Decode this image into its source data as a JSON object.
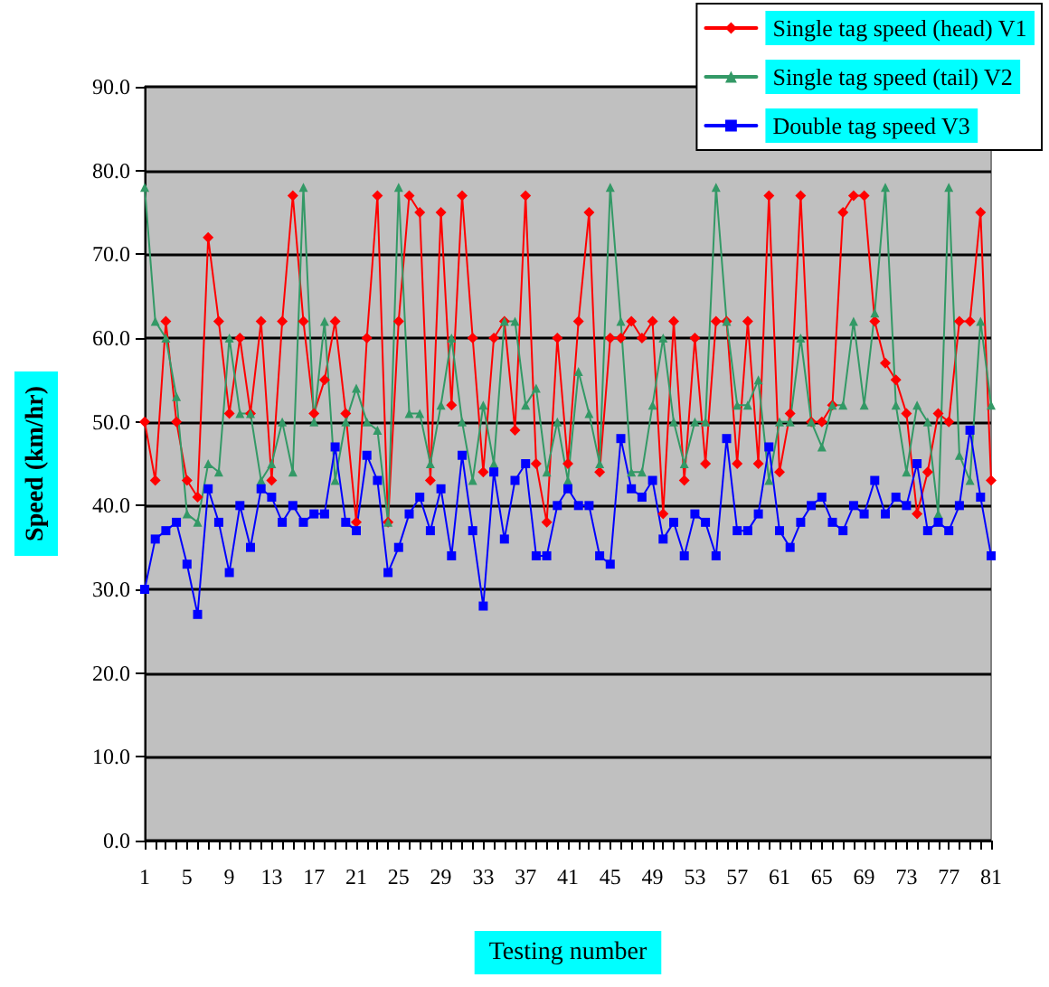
{
  "chart_data": {
    "type": "line",
    "xlabel": "Testing number",
    "ylabel": "Speed (km/hr)",
    "categories": [
      "1",
      null,
      null,
      null,
      "5",
      null,
      null,
      null,
      "9",
      null,
      null,
      null,
      "13",
      null,
      null,
      null,
      "17",
      null,
      null,
      null,
      "21",
      null,
      null,
      null,
      "25",
      null,
      null,
      null,
      "29",
      null,
      null,
      null,
      "33",
      null,
      null,
      null,
      "37",
      null,
      null,
      null,
      "41",
      null,
      null,
      null,
      "45",
      null,
      null,
      null,
      "49",
      null,
      null,
      null,
      "53",
      null,
      null,
      null,
      "57",
      null,
      null,
      null,
      "61",
      null,
      null,
      null,
      "65",
      null,
      null,
      null,
      "69",
      null,
      null,
      null,
      "73",
      null,
      null,
      null,
      "77",
      null,
      null,
      null,
      "81"
    ],
    "series": [
      {
        "name": "Single tag speed (head) V1",
        "color": "#ff0000",
        "marker": "diamond",
        "values": [
          50,
          43,
          62,
          50,
          43,
          41,
          72,
          62,
          51,
          60,
          51,
          62,
          43,
          62,
          77,
          62,
          51,
          55,
          62,
          51,
          38,
          60,
          77,
          38,
          62,
          77,
          75,
          43,
          75,
          52,
          77,
          60,
          44,
          60,
          62,
          49,
          77,
          45,
          38,
          60,
          45,
          62,
          75,
          44,
          60,
          60,
          62,
          60,
          62,
          39,
          62,
          43,
          60,
          45,
          62,
          62,
          45,
          62,
          45,
          77,
          44,
          51,
          77,
          50,
          50,
          52,
          75,
          77,
          77,
          62,
          57,
          55,
          51,
          39,
          44,
          51,
          50,
          62,
          62,
          75,
          43
        ]
      },
      {
        "name": "Single tag speed (tail) V2",
        "color": "#339966",
        "marker": "triangle",
        "values": [
          78,
          62,
          60,
          53,
          39,
          38,
          45,
          44,
          60,
          51,
          51,
          43,
          45,
          50,
          44,
          78,
          50,
          62,
          43,
          50,
          54,
          50,
          49,
          38,
          78,
          51,
          51,
          45,
          52,
          60,
          50,
          43,
          52,
          45,
          62,
          62,
          52,
          54,
          44,
          50,
          43,
          56,
          51,
          45,
          78,
          62,
          44,
          44,
          52,
          60,
          50,
          45,
          50,
          50,
          78,
          62,
          52,
          52,
          55,
          43,
          50,
          50,
          60,
          50,
          47,
          52,
          52,
          62,
          52,
          63,
          78,
          52,
          44,
          52,
          50,
          39,
          78,
          46,
          43,
          62,
          52
        ]
      },
      {
        "name": "Double tag speed V3",
        "color": "#0000ff",
        "marker": "square",
        "values": [
          30,
          36,
          37,
          38,
          33,
          27,
          42,
          38,
          32,
          40,
          35,
          42,
          41,
          38,
          40,
          38,
          39,
          39,
          47,
          38,
          37,
          46,
          43,
          32,
          35,
          39,
          41,
          37,
          42,
          34,
          46,
          37,
          28,
          44,
          36,
          43,
          45,
          34,
          34,
          40,
          42,
          40,
          40,
          34,
          33,
          48,
          42,
          41,
          43,
          36,
          38,
          34,
          39,
          38,
          34,
          48,
          37,
          37,
          39,
          47,
          37,
          35,
          38,
          40,
          41,
          38,
          37,
          40,
          39,
          43,
          39,
          41,
          40,
          45,
          37,
          38,
          37,
          40,
          49,
          41,
          34
        ]
      }
    ],
    "ylim": [
      0,
      90
    ],
    "yticks": [
      {
        "value": 0,
        "label": "0.0"
      },
      {
        "value": 10,
        "label": "10.0"
      },
      {
        "value": 20,
        "label": "20.0"
      },
      {
        "value": 30,
        "label": "30.0"
      },
      {
        "value": 40,
        "label": "40.0"
      },
      {
        "value": 50,
        "label": "50.0"
      },
      {
        "value": 60,
        "label": "60.0"
      },
      {
        "value": 70,
        "label": "70.0"
      },
      {
        "value": 80,
        "label": "80.0"
      },
      {
        "value": 90,
        "label": "90.0"
      }
    ],
    "grid": "y",
    "legend": "top right",
    "line_style": "solid"
  }
}
